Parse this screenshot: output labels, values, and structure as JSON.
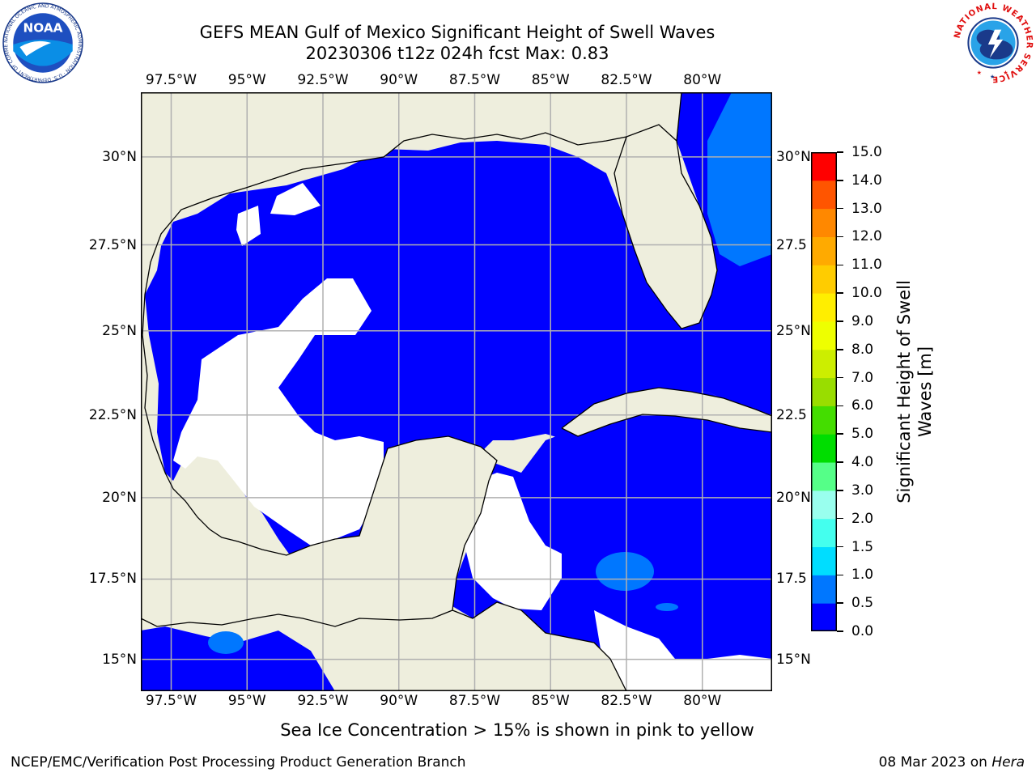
{
  "title": {
    "line1": "GEFS MEAN Gulf of Mexico Significant Height of Swell Waves",
    "line2": "20230306 t12z 024h fcst   Max: 0.83"
  },
  "logos": {
    "left": {
      "name": "noaa-logo",
      "text": "NOAA",
      "ring_text": "NATIONAL OCEANIC AND ATMOSPHERIC ADMINISTRATION · U.S. DEPARTMENT OF COMMERCE"
    },
    "right": {
      "name": "nws-logo",
      "ring_text": "NATIONAL WEATHER SERVICE"
    }
  },
  "map": {
    "projection": "Mercator",
    "extent": {
      "lon_min": -98.5,
      "lon_max": -77.7,
      "lat_min": 14.0,
      "lat_max": 31.8
    },
    "lon_ticks": [
      "97.5°W",
      "95°W",
      "92.5°W",
      "90°W",
      "87.5°W",
      "85°W",
      "82.5°W",
      "80°W"
    ],
    "lon_values": [
      -97.5,
      -95,
      -92.5,
      -90,
      -87.5,
      -85,
      -82.5,
      -80
    ],
    "lat_ticks_left": [
      "30°N",
      "27.5°N",
      "25°N",
      "22.5°N",
      "20°N",
      "17.5°N",
      "15°N"
    ],
    "lat_ticks_right": [
      "30°N",
      "27.5",
      "25°N",
      "22.5",
      "20°N",
      "17.5",
      "15°N"
    ],
    "lat_values": [
      30,
      27.5,
      25,
      22.5,
      20,
      17.5,
      15
    ],
    "grid": true,
    "colors": {
      "land": "#eeeedd",
      "no_data": "#ffffff",
      "gridline": "#b0b0b0",
      "coastline": "#000000"
    },
    "field_summary": "Most open Gulf and Caribbean water in 0.0-0.5 m band; 0.5-1.0 m patches east of Florida and south of Cuba"
  },
  "colorbar": {
    "label": "Significant Height of Swell\nWaves [m]",
    "label_line1": "Significant Height of Swell",
    "label_line2": "Waves [m]",
    "ticks": [
      "0.0",
      "0.5",
      "1.0",
      "1.5",
      "2.0",
      "3.0",
      "4.0",
      "5.0",
      "6.0",
      "7.0",
      "8.0",
      "9.0",
      "10.0",
      "11.0",
      "12.0",
      "13.0",
      "14.0",
      "15.0"
    ],
    "colors": [
      "#0000ff",
      "#0077ff",
      "#00ddff",
      "#44ffee",
      "#99ffee",
      "#55ff88",
      "#00dd00",
      "#44dd00",
      "#99dd00",
      "#ccee00",
      "#eeff00",
      "#ffee00",
      "#ffcc00",
      "#ffaa00",
      "#ff8800",
      "#ff5500",
      "#ff2200",
      "#ff0000"
    ]
  },
  "footnote": "Sea Ice Concentration > 15% is shown in pink to yellow",
  "credits": {
    "left": "NCEP/EMC/Verification Post Processing Product Generation Branch",
    "right_prefix": "08 Mar 2023 on ",
    "right_host": "Hera"
  }
}
